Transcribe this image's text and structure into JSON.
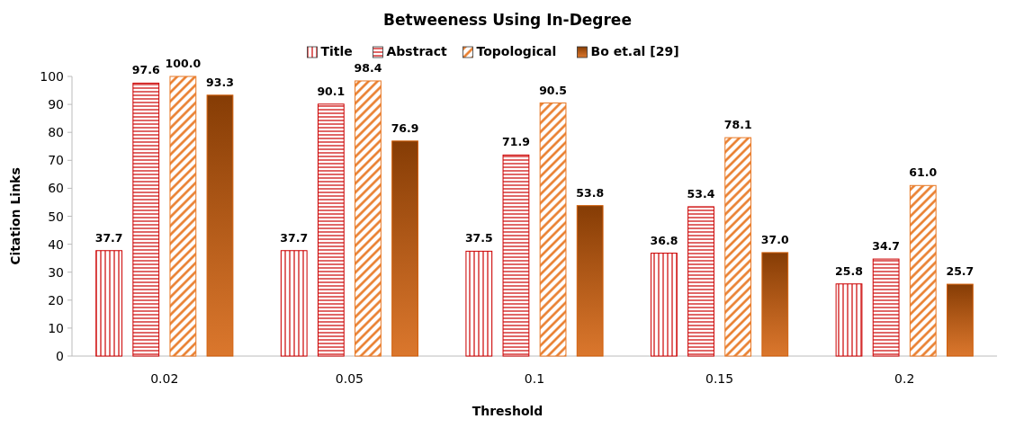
{
  "chart_data": {
    "type": "bar",
    "title": "Betweeness Using In-Degree",
    "xlabel": "Threshold",
    "ylabel": "Citation Links",
    "categories": [
      "0.02",
      "0.05",
      "0.1",
      "0.15",
      "0.2"
    ],
    "series": [
      {
        "name": "Title",
        "color": "#cc0000",
        "values": [
          37.7,
          37.7,
          37.5,
          36.8,
          25.8
        ],
        "value_labels": [
          "37.7",
          "37.7",
          "37.5",
          "36.8",
          "25.8"
        ]
      },
      {
        "name": "Abstract",
        "color": "#cc0000",
        "values": [
          97.6,
          90.1,
          71.9,
          53.4,
          34.7
        ],
        "value_labels": [
          "97.6",
          "90.1",
          "71.9",
          "53.4",
          "34.7"
        ]
      },
      {
        "name": "Topological",
        "color": "#e87722",
        "values": [
          100,
          98.4,
          90.5,
          78.1,
          61.0
        ],
        "value_labels": [
          "100.0",
          "98.4",
          "90.5",
          "78.1",
          "61.0"
        ]
      },
      {
        "name": "Bo et.al [29]",
        "color": "#d45f08",
        "values": [
          93.3,
          76.9,
          53.8,
          37.0,
          25.7
        ],
        "value_labels": [
          "93.3",
          "76.9",
          "53.8",
          "37.0",
          "25.7"
        ]
      }
    ],
    "ylim": [
      0,
      100
    ],
    "yticks": [
      0,
      10,
      20,
      30,
      40,
      50,
      60,
      70,
      80,
      90,
      100
    ],
    "grid": false,
    "legend": "top"
  }
}
